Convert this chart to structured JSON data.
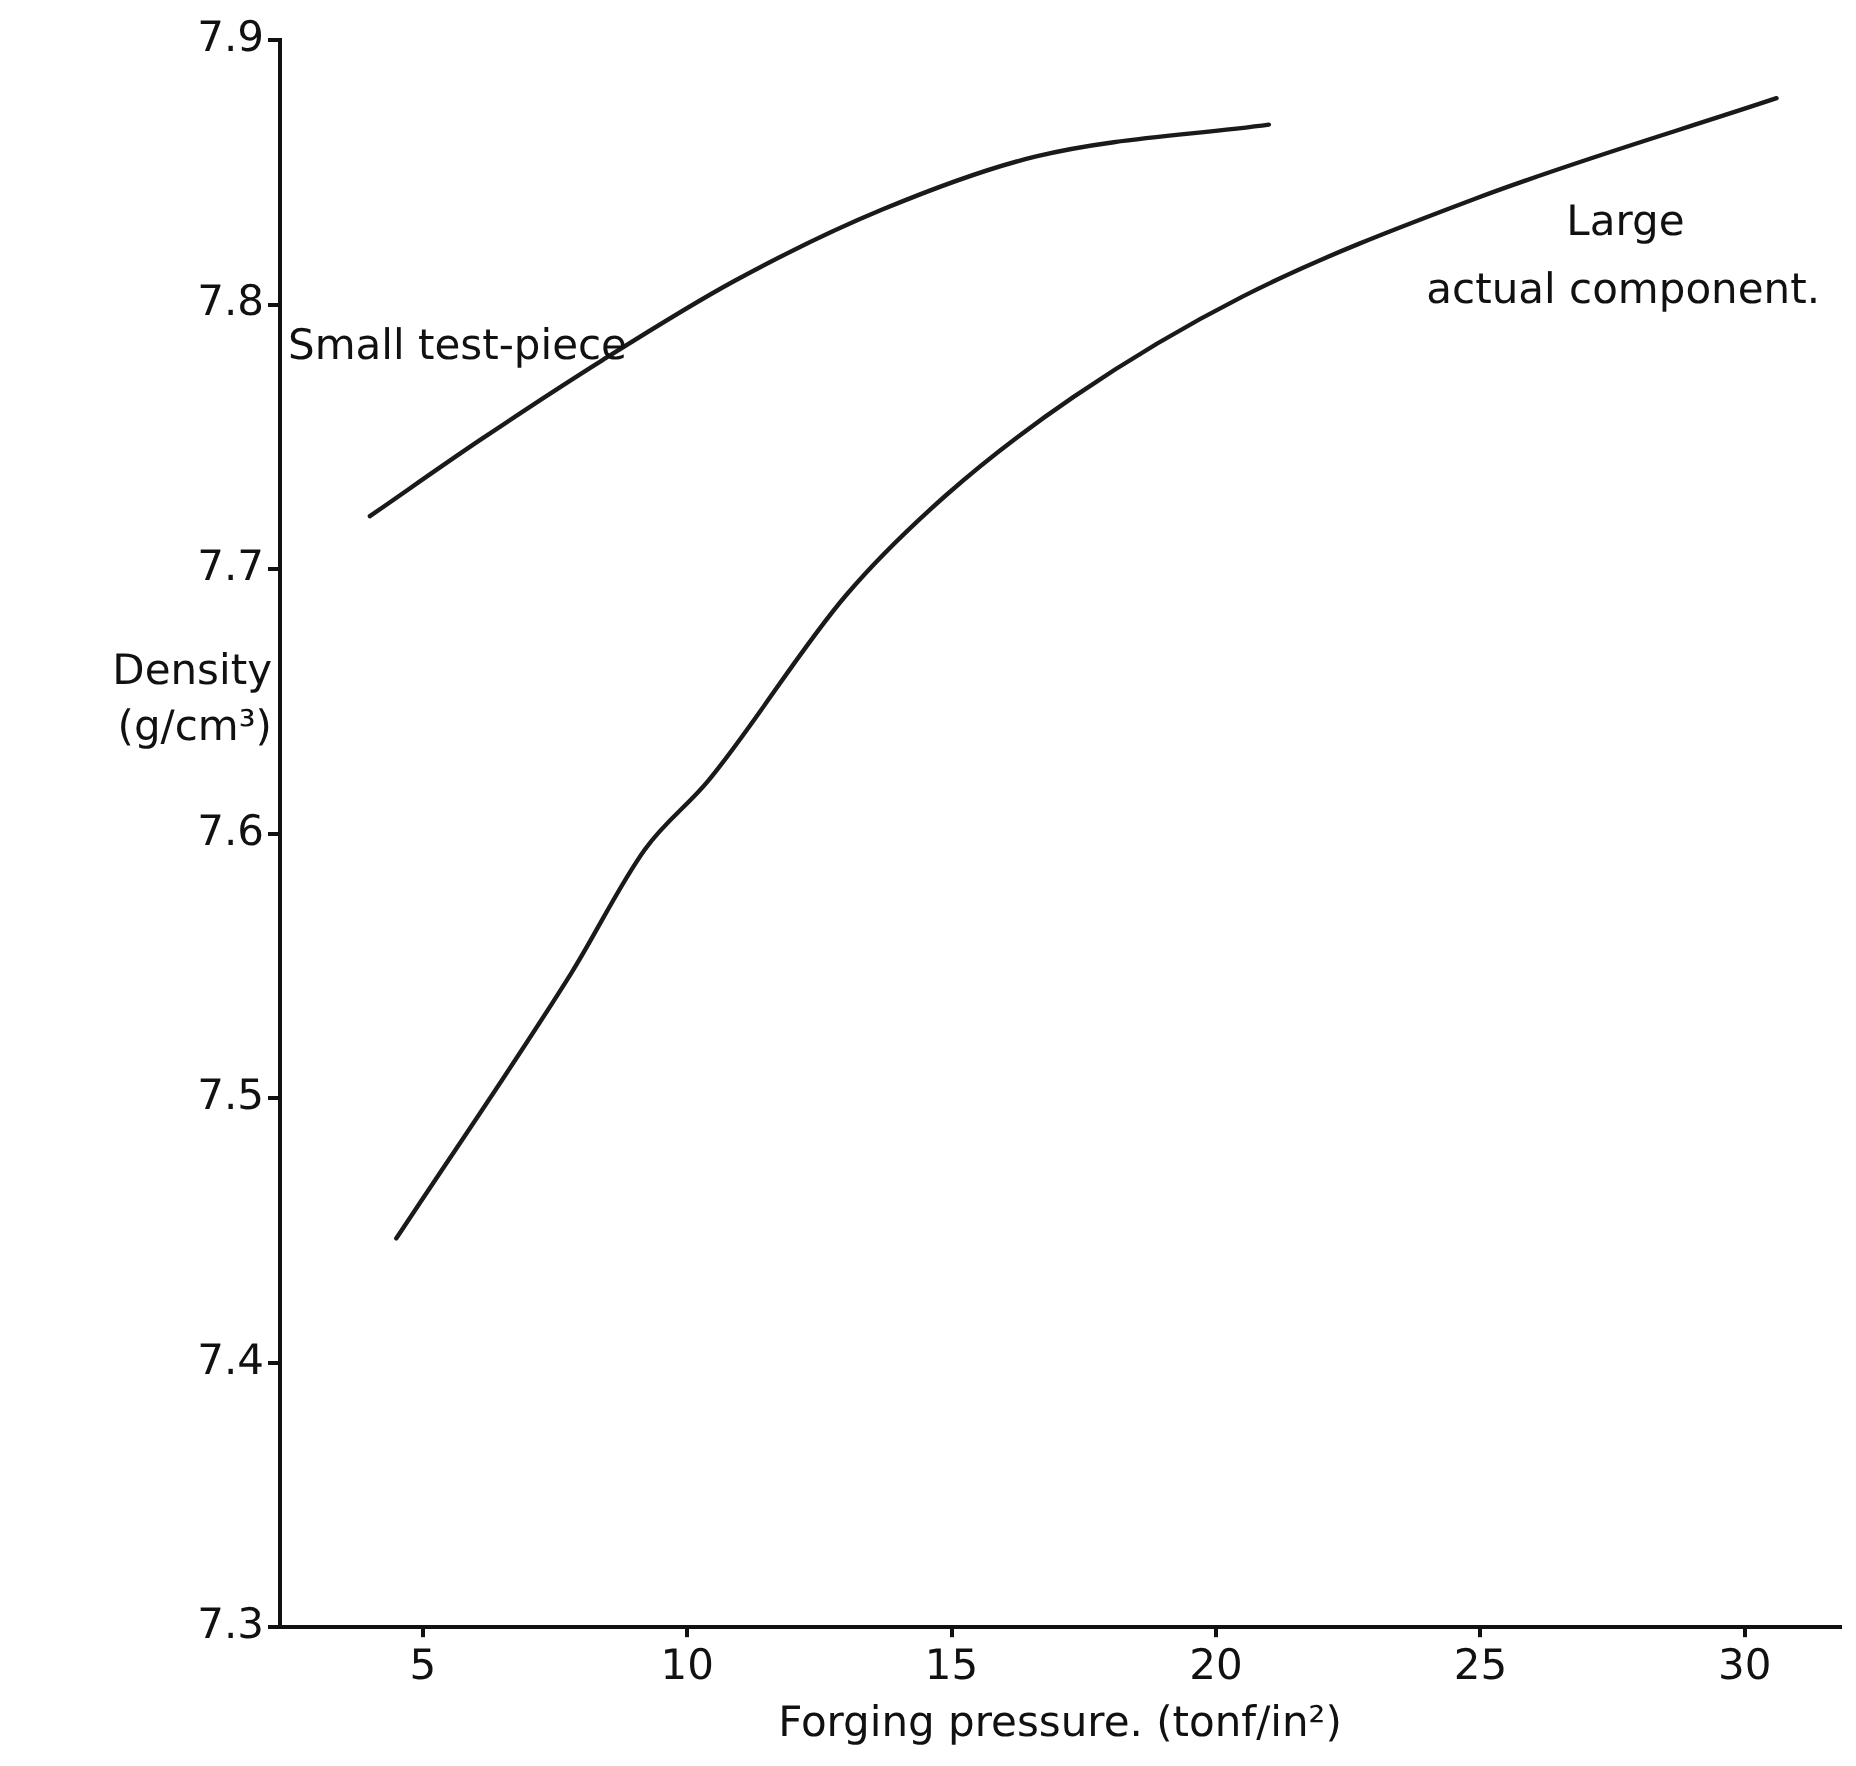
{
  "chart_data": {
    "type": "line",
    "xlabel": "Forging pressure. (tonf/in²)",
    "ylabel": "Density (g/cm³)",
    "xlim": [
      2.3,
      31.8
    ],
    "ylim": [
      7.3,
      7.9
    ],
    "xticks": [
      5,
      10,
      15,
      20,
      25,
      30
    ],
    "yticks": [
      7.3,
      7.4,
      7.5,
      7.6,
      7.7,
      7.8,
      7.9
    ],
    "grid": false,
    "legend": false,
    "marker": "none",
    "line_style": "solid",
    "series": [
      {
        "name": "Small test-piece",
        "color": "#1a1a1a",
        "x": [
          4.0,
          6.1,
          8.4,
          10.9,
          13.7,
          16.6,
          21.0
        ],
        "values": [
          7.72,
          7.749,
          7.779,
          7.809,
          7.836,
          7.856,
          7.868
        ]
      },
      {
        "name": "Large actual component.",
        "color": "#1a1a1a",
        "x": [
          4.5,
          7.8,
          9.2,
          10.4,
          13.0,
          14.9,
          17.3,
          20.5,
          24.9,
          30.6
        ],
        "values": [
          7.447,
          7.547,
          7.594,
          7.62,
          7.69,
          7.728,
          7.765,
          7.803,
          7.84,
          7.878
        ]
      }
    ]
  }
}
